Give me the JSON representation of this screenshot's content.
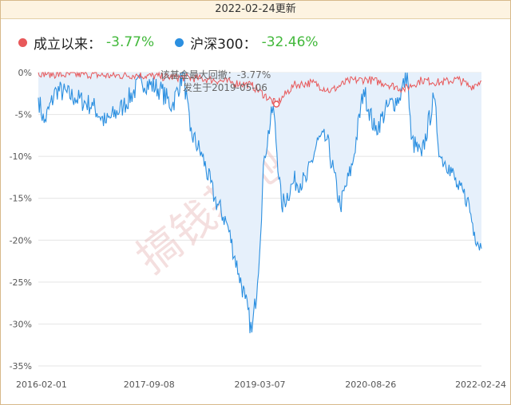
{
  "header": {
    "update_text": "2022-02-24更新"
  },
  "legend": [
    {
      "name": "成立以来：",
      "value": "-3.77%",
      "color": "#e8585a"
    },
    {
      "name": "沪深300：",
      "value": "-32.46%",
      "color": "#2b8fe0"
    }
  ],
  "annotation": {
    "line1": "该基金最大回撤：-3.77%",
    "line2": "发生于2019-05-06"
  },
  "watermark": "搞钱基地",
  "colors": {
    "fund": "#e8585a",
    "index": "#2b8fe0",
    "index_fill": "#e6f0fb",
    "value_green": "#41b83a"
  },
  "chart_data": {
    "type": "area",
    "x_ticks": [
      "2016-02-01",
      "2017-09-08",
      "2019-03-07",
      "2020-08-26",
      "2022-02-24"
    ],
    "y_ticks": [
      "0%",
      "-5%",
      "-10%",
      "-15%",
      "-20%",
      "-25%",
      "-30%",
      "-35%"
    ],
    "ylim": [
      -35,
      0
    ],
    "xlim": [
      "2016-02-01",
      "2022-02-24"
    ],
    "grid": true,
    "series": [
      {
        "name": "成立以来",
        "x": [
          "2016-02-01",
          "2016-06-01",
          "2016-10-01",
          "2017-02-01",
          "2017-06-01",
          "2017-10-01",
          "2018-02-01",
          "2018-06-01",
          "2018-10-01",
          "2019-01-01",
          "2019-05-06",
          "2019-08-01",
          "2019-11-01",
          "2020-02-01",
          "2020-05-01",
          "2020-08-01",
          "2020-11-01",
          "2021-02-01",
          "2021-05-01",
          "2021-08-01",
          "2021-11-01",
          "2022-01-01",
          "2022-02-24"
        ],
        "values": [
          0,
          -0.3,
          -0.2,
          -0.4,
          -0.3,
          -0.5,
          -0.6,
          -0.8,
          -1.2,
          -1.5,
          -3.77,
          -1.5,
          -1.2,
          -2.2,
          -1.0,
          -0.8,
          -1.3,
          -2.0,
          -0.9,
          -1.2,
          -0.8,
          -1.7,
          -1.0
        ]
      },
      {
        "name": "沪深300",
        "x": [
          "2016-02-01",
          "2016-03-01",
          "2016-05-01",
          "2016-08-01",
          "2016-11-01",
          "2017-01-01",
          "2017-04-01",
          "2017-07-01",
          "2017-10-01",
          "2017-12-01",
          "2018-01-26",
          "2018-03-01",
          "2018-05-01",
          "2018-07-01",
          "2018-09-01",
          "2018-10-30",
          "2018-12-01",
          "2019-01-03",
          "2019-02-01",
          "2019-03-07",
          "2019-04-20",
          "2019-06-01",
          "2019-08-01",
          "2019-10-01",
          "2019-12-01",
          "2020-01-14",
          "2020-03-20",
          "2020-05-20",
          "2020-07-15",
          "2020-09-10",
          "2020-11-15",
          "2021-01-10",
          "2021-02-18",
          "2021-03-10",
          "2021-05-01",
          "2021-07-01",
          "2021-08-01",
          "2021-09-15",
          "2021-11-01",
          "2021-12-15",
          "2022-01-20",
          "2022-02-24"
        ],
        "values": [
          -3,
          -6,
          -2,
          -3,
          -4,
          -6,
          -4,
          -1,
          -2,
          -4,
          0,
          -7,
          -10,
          -15,
          -18,
          -24,
          -27,
          -31,
          -25,
          -10,
          -4,
          -16,
          -13,
          -13,
          -8,
          -8,
          -16,
          -11,
          -2,
          -7,
          -4,
          -3,
          0,
          -8,
          -10,
          -3,
          -10,
          -11,
          -14,
          -15,
          -19,
          -21
        ]
      }
    ]
  }
}
